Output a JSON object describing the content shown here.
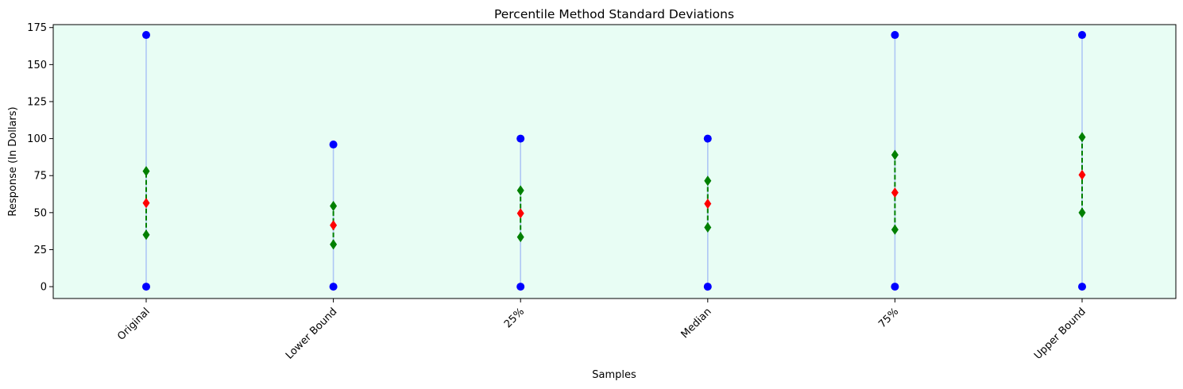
{
  "chart_data": {
    "type": "scatter",
    "title": "Percentile Method Standard Deviations",
    "xlabel": "Samples",
    "ylabel": "Response (In Dollars)",
    "categories": [
      "Original",
      "Lower Bound",
      "25%",
      "Median",
      "75%",
      "Upper Bound"
    ],
    "ylim": [
      -8,
      177
    ],
    "yticks": [
      0,
      25,
      50,
      75,
      100,
      125,
      150,
      175
    ],
    "grid": false,
    "background_color": "#e8fdf4",
    "series": [
      {
        "role": "range_min",
        "marker": "circle",
        "color": "#0000ff",
        "values": [
          0,
          0,
          0,
          0,
          0,
          0
        ]
      },
      {
        "role": "range_max",
        "marker": "circle",
        "color": "#0000ff",
        "values": [
          170,
          96,
          100,
          100,
          170,
          170
        ]
      },
      {
        "role": "mean",
        "marker": "diamond",
        "color": "#ff0000",
        "values": [
          56.5,
          41.5,
          49.5,
          56,
          63.5,
          75.5
        ]
      },
      {
        "role": "mean_minus_sd",
        "marker": "diamond",
        "color": "#008000",
        "values": [
          35,
          28.5,
          33.5,
          40,
          38.5,
          50
        ]
      },
      {
        "role": "mean_plus_sd",
        "marker": "diamond",
        "color": "#008000",
        "values": [
          78,
          54.5,
          65,
          71.5,
          89,
          101
        ]
      }
    ],
    "range_line_color": "#aec7f5",
    "sd_line_color": "#008000",
    "sd_line_style": "dashed"
  }
}
